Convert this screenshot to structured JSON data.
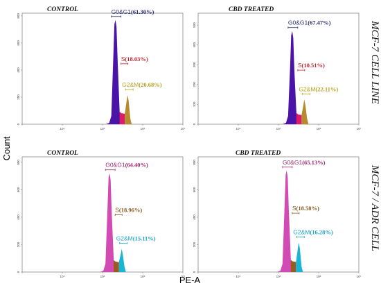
{
  "figure": {
    "y_axis_label": "Count",
    "x_axis_label": "PE-A",
    "row_labels": [
      "MCF-7 CELL LINE",
      "MCF-7 / ADR CELL"
    ]
  },
  "colors": {
    "g0g1_row1": "#4b14a8",
    "s_row1": "#e01a6b",
    "g2m_row1": "#b88a2e",
    "g0g1_row2": "#d24bb4",
    "s_row2": "#9a5b1e",
    "g2m_row2": "#19b6d4",
    "label_g0g1_row1": "#2a2a6e",
    "label_s_row1": "#c0262e",
    "label_g2m_row1": "#b8a21a",
    "label_g0g1_row2": "#a0286e",
    "label_s_row2": "#8a5a22",
    "label_g2m_row2": "#1aa6c8"
  },
  "chart_data": [
    {
      "type": "histogram",
      "title": "CONTROL",
      "row": "MCF-7 CELL LINE",
      "x_scale": "log",
      "xlim": [
        1000,
        10000000
      ],
      "xticks": [
        "10^3",
        "10^4",
        "10^5",
        "10^6",
        "10^7"
      ],
      "ylim": [
        0,
        820
      ],
      "yticks": [
        0,
        200,
        400,
        600,
        800
      ],
      "series": [
        {
          "phase": "G0&G1",
          "percent": 61.3,
          "label": "G0&G1",
          "value_label": "(61.30%)"
        },
        {
          "phase": "S",
          "percent": 18.03,
          "label": "S",
          "value_label": "(18.03%)"
        },
        {
          "phase": "G2&M",
          "percent": 20.68,
          "label": "G2&M",
          "value_label": "(20.68%)"
        }
      ],
      "peaks": {
        "g0g1_x": 210000,
        "g0g1_y": 770,
        "g2m_x": 420000,
        "g2m_y": 215
      }
    },
    {
      "type": "histogram",
      "title": "CBD TREATED",
      "row": "MCF-7 CELL LINE",
      "x_scale": "log",
      "xlim": [
        1000,
        10000000
      ],
      "xticks": [
        "10^3",
        "10^4",
        "10^5",
        "10^6",
        "10^7"
      ],
      "ylim": [
        0,
        560
      ],
      "yticks": [
        0,
        100,
        200,
        300,
        400,
        500
      ],
      "series": [
        {
          "phase": "G0&G1",
          "percent": 67.47,
          "label": "G0&G1",
          "value_label": "(67.47%)"
        },
        {
          "phase": "S",
          "percent": 10.51,
          "label": "S",
          "value_label": "(10.51%)"
        },
        {
          "phase": "G2&M",
          "percent": 22.11,
          "label": "G2&M",
          "value_label": "(22.11%)"
        }
      ],
      "peaks": {
        "g0g1_x": 220000,
        "g0g1_y": 470,
        "g2m_x": 440000,
        "g2m_y": 125
      }
    },
    {
      "type": "histogram",
      "title": "CONTROL",
      "row": "MCF-7 / ADR CELL",
      "x_scale": "log",
      "xlim": [
        1000,
        10000000
      ],
      "xticks": [
        "10^3",
        "10^4",
        "10^5",
        "10^6",
        "10^7"
      ],
      "ylim": [
        0,
        840
      ],
      "yticks": [
        0,
        200,
        400,
        600,
        800
      ],
      "series": [
        {
          "phase": "G0&G1",
          "percent": 64.4,
          "label": "G0&G1",
          "value_label": "(64.40%)"
        },
        {
          "phase": "S",
          "percent": 18.96,
          "label": "S",
          "value_label": "(18.96%)"
        },
        {
          "phase": "G2&M",
          "percent": 15.11,
          "label": "G2&M",
          "value_label": "(15.11%)"
        }
      ],
      "peaks": {
        "g0g1_x": 150000,
        "g0g1_y": 720,
        "g2m_x": 300000,
        "g2m_y": 170
      }
    },
    {
      "type": "histogram",
      "title": "CBD TREATED",
      "row": "MCF-7 / ADR CELL",
      "x_scale": "log",
      "xlim": [
        1000,
        10000000
      ],
      "xticks": [
        "10^3",
        "10^4",
        "10^5",
        "10^6",
        "10^7"
      ],
      "ylim": [
        0,
        840
      ],
      "yticks": [
        0,
        200,
        400,
        600,
        800
      ],
      "series": [
        {
          "phase": "G0&G1",
          "percent": 65.13,
          "label": "G0&G1",
          "value_label": "(65.13%)"
        },
        {
          "phase": "S",
          "percent": 18.58,
          "label": "S",
          "value_label": "(18.58%)"
        },
        {
          "phase": "G2&M",
          "percent": 16.28,
          "label": "G2&M",
          "value_label": "(16.28%)"
        }
      ],
      "peaks": {
        "g0g1_x": 160000,
        "g0g1_y": 740,
        "g2m_x": 320000,
        "g2m_y": 215
      }
    }
  ]
}
